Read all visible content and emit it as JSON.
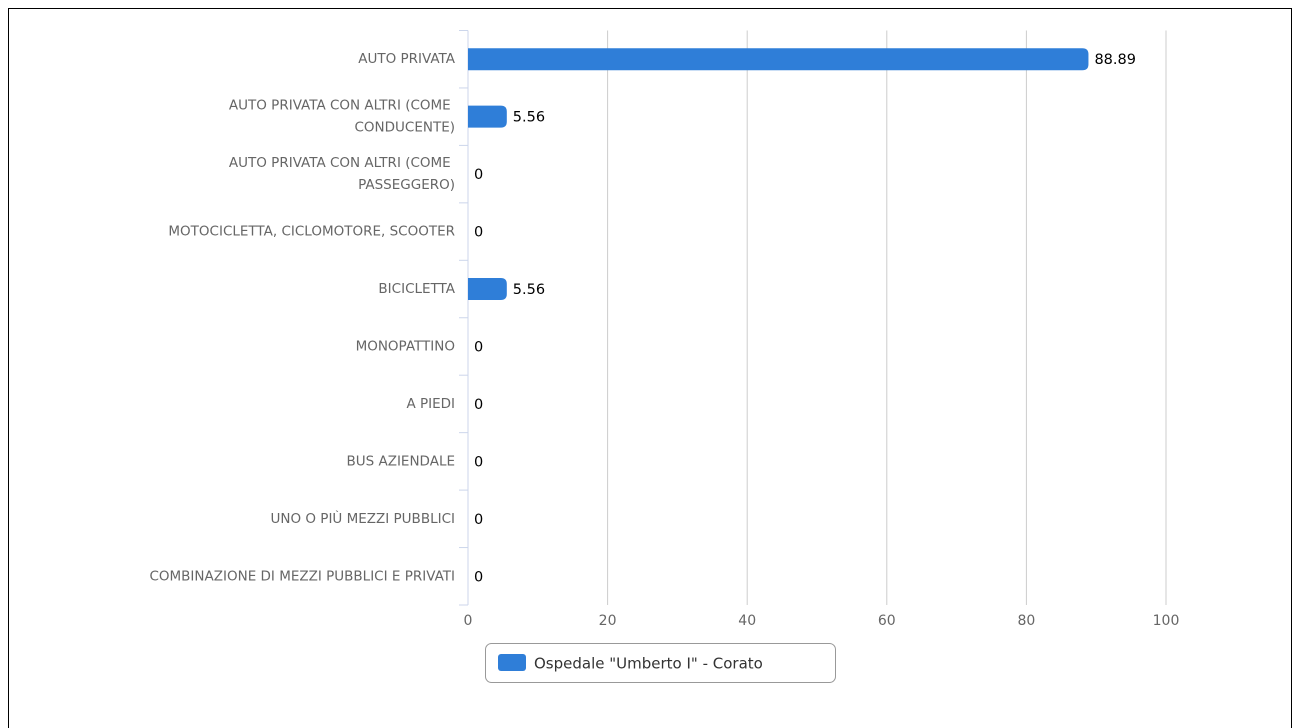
{
  "chart_data": {
    "type": "bar",
    "orientation": "horizontal",
    "categories": [
      "AUTO PRIVATA",
      "AUTO PRIVATA CON ALTRI (COME CONDUCENTE)",
      "AUTO PRIVATA CON ALTRI (COME PASSEGGERO)",
      "MOTOCICLETTA, CICLOMOTORE, SCOOTER",
      "BICICLETTA",
      "MONOPATTINO",
      "A PIEDI",
      "BUS AZIENDALE",
      "UNO O PIÙ MEZZI PUBBLICI",
      "COMBINAZIONE DI MEZZI PUBBLICI E PRIVATI"
    ],
    "series": [
      {
        "name": "Ospedale \"Umberto I\" - Corato",
        "color": "#2f7ed8",
        "values": [
          88.89,
          5.56,
          0,
          0,
          5.56,
          0,
          0,
          0,
          0,
          0
        ]
      }
    ],
    "xlim": [
      0,
      100
    ],
    "xticks": [
      0,
      20,
      40,
      60,
      80,
      100
    ],
    "grid": true,
    "legend": "bottom"
  }
}
